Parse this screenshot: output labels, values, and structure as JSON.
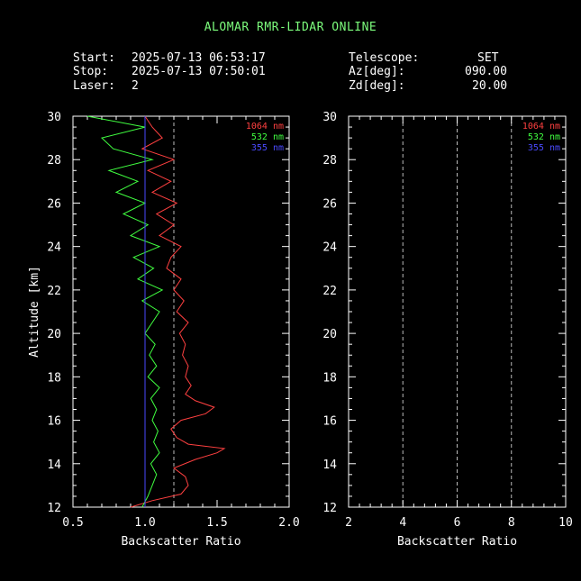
{
  "title": "ALOMAR RMR-LIDAR ONLINE",
  "header": {
    "start_label": "Start:",
    "start_value": "2025-07-13 06:53:17",
    "stop_label": "Stop:",
    "stop_value": "2025-07-13 07:50:01",
    "laser_label": "Laser:",
    "laser_value": "2",
    "telescope_label": "Telescope:",
    "telescope_value": "SET",
    "az_label": "Az[deg]:",
    "az_value": "090.00",
    "zd_label": "Zd[deg]:",
    "zd_value": "20.00"
  },
  "colors": {
    "c1064": "#ff4040",
    "c532": "#40ff40",
    "c355": "#4a4aff",
    "axis": "#ffffff",
    "title": "#7CFC7C"
  },
  "chart_data": [
    {
      "type": "line",
      "xlabel": "Backscatter Ratio",
      "ylabel": "Altitude [km]",
      "xlim": [
        0.5,
        2.0
      ],
      "ylim": [
        12,
        30
      ],
      "xticks": [
        "0.5",
        "1.0",
        "1.5",
        "2.0"
      ],
      "yticks": [
        "12",
        "14",
        "16",
        "18",
        "20",
        "22",
        "24",
        "26",
        "28",
        "30"
      ],
      "reference_lines": [
        1.2
      ],
      "legend": [
        "1064 nm",
        "532 nm",
        "355 nm"
      ],
      "legend_position": "top-right",
      "series": [
        {
          "name": "1064 nm",
          "color": "#ff4040",
          "altitude": [
            12.0,
            12.3,
            12.6,
            13.0,
            13.4,
            13.8,
            14.2,
            14.5,
            14.7,
            14.9,
            15.2,
            15.6,
            16.0,
            16.3,
            16.6,
            16.9,
            17.2,
            17.6,
            18.0,
            18.5,
            19.0,
            19.5,
            20.0,
            20.5,
            21.0,
            21.5,
            22.0,
            22.5,
            23.0,
            23.5,
            24.0,
            24.5,
            25.0,
            25.5,
            26.0,
            26.5,
            27.0,
            27.5,
            28.0,
            28.5,
            29.0,
            29.5,
            30.0
          ],
          "x": [
            0.9,
            1.05,
            1.25,
            1.3,
            1.28,
            1.2,
            1.35,
            1.5,
            1.55,
            1.3,
            1.22,
            1.18,
            1.25,
            1.42,
            1.48,
            1.35,
            1.28,
            1.32,
            1.28,
            1.3,
            1.26,
            1.28,
            1.24,
            1.3,
            1.22,
            1.27,
            1.2,
            1.25,
            1.15,
            1.18,
            1.25,
            1.1,
            1.2,
            1.08,
            1.22,
            1.05,
            1.18,
            1.02,
            1.2,
            0.98,
            1.12,
            1.05,
            1.0
          ]
        },
        {
          "name": "532 nm",
          "color": "#40ff40",
          "altitude": [
            12.0,
            12.5,
            13.0,
            13.5,
            14.0,
            14.5,
            15.0,
            15.5,
            16.0,
            16.5,
            17.0,
            17.5,
            18.0,
            18.5,
            19.0,
            19.5,
            20.0,
            20.5,
            21.0,
            21.5,
            22.0,
            22.5,
            23.0,
            23.5,
            24.0,
            24.5,
            25.0,
            25.5,
            26.0,
            26.5,
            27.0,
            27.5,
            28.0,
            28.5,
            29.0,
            29.5,
            30.0
          ],
          "x": [
            0.98,
            1.02,
            1.05,
            1.08,
            1.04,
            1.1,
            1.06,
            1.09,
            1.05,
            1.08,
            1.04,
            1.1,
            1.02,
            1.08,
            1.03,
            1.07,
            1.0,
            1.05,
            1.1,
            0.98,
            1.12,
            0.95,
            1.06,
            0.92,
            1.1,
            0.9,
            1.02,
            0.85,
            1.0,
            0.8,
            0.95,
            0.75,
            1.05,
            0.78,
            0.7,
            1.0,
            0.6
          ]
        },
        {
          "name": "355 nm",
          "color": "#4a4aff",
          "altitude": [
            12.0,
            30.0
          ],
          "x": [
            1.0,
            1.0
          ]
        }
      ]
    },
    {
      "type": "line",
      "xlabel": "Backscatter Ratio",
      "ylabel": "",
      "xlim": [
        2,
        10
      ],
      "ylim": [
        12,
        30
      ],
      "xticks": [
        "2",
        "4",
        "6",
        "8",
        "10"
      ],
      "yticks": [
        "12",
        "14",
        "16",
        "18",
        "20",
        "22",
        "24",
        "26",
        "28",
        "30"
      ],
      "reference_lines": [
        4,
        6,
        8
      ],
      "legend": [
        "1064 nm",
        "532 nm",
        "355 nm"
      ],
      "legend_position": "top-right",
      "series": []
    }
  ]
}
